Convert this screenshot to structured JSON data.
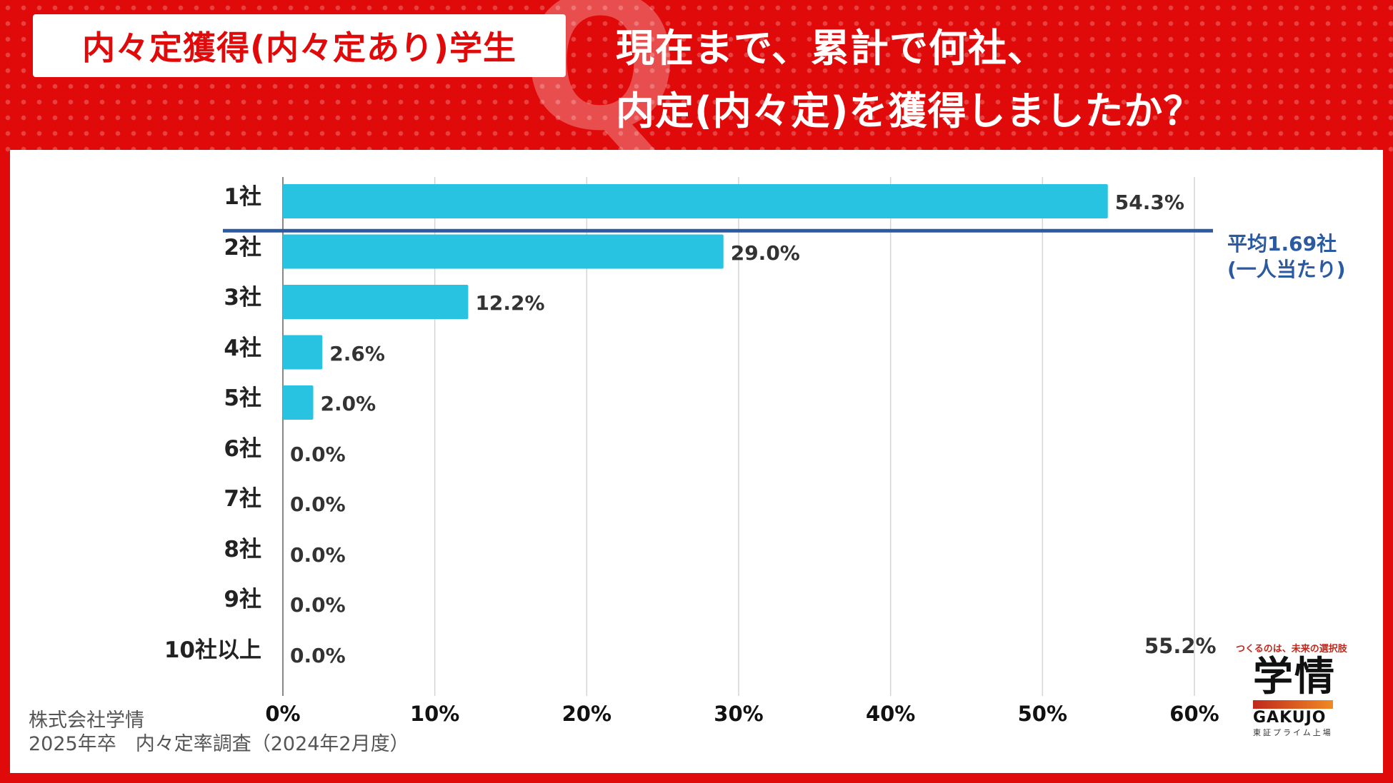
{
  "header": {
    "badge": "内々定獲得(内々定あり)学生",
    "question_line1": "現在まで、累計で何社、",
    "question_line2": "内定(内々定)を獲得しましたか？",
    "q_letter": "Q"
  },
  "chart_data": {
    "type": "bar",
    "orientation": "horizontal",
    "categories": [
      "1社",
      "2社",
      "3社",
      "4社",
      "5社",
      "6社",
      "7社",
      "8社",
      "9社",
      "10社以上"
    ],
    "values": [
      54.3,
      29.0,
      12.2,
      2.6,
      2.0,
      0.0,
      0.0,
      0.0,
      0.0,
      0.0
    ],
    "value_labels": [
      "54.3%",
      "29.0%",
      "12.2%",
      "2.6%",
      "2.0%",
      "0.0%",
      "0.0%",
      "0.0%",
      "0.0%",
      "0.0%"
    ],
    "xlim": [
      0,
      60
    ],
    "xticks": [
      "0%",
      "10%",
      "20%",
      "30%",
      "40%",
      "50%",
      "60%"
    ],
    "grid": true,
    "bar_color": "#29c3e2",
    "average_line": {
      "label_line1": "平均1.69社",
      "label_line2": "(一人当たり)",
      "color": "#2b5aa0"
    },
    "extra_label": "55.2%"
  },
  "footer": {
    "source_line1": "株式会社学情",
    "source_line2": "2025年卒　内々定率調査（2024年2月度）"
  },
  "logo": {
    "tagline": "つくるのは、未来の選択肢",
    "mark": "学情",
    "english": "GAKUJO",
    "sub": "東証プライム上場"
  },
  "colors": {
    "brand_red": "#e00a0a",
    "bar": "#29c3e2",
    "average": "#2b5aa0"
  }
}
